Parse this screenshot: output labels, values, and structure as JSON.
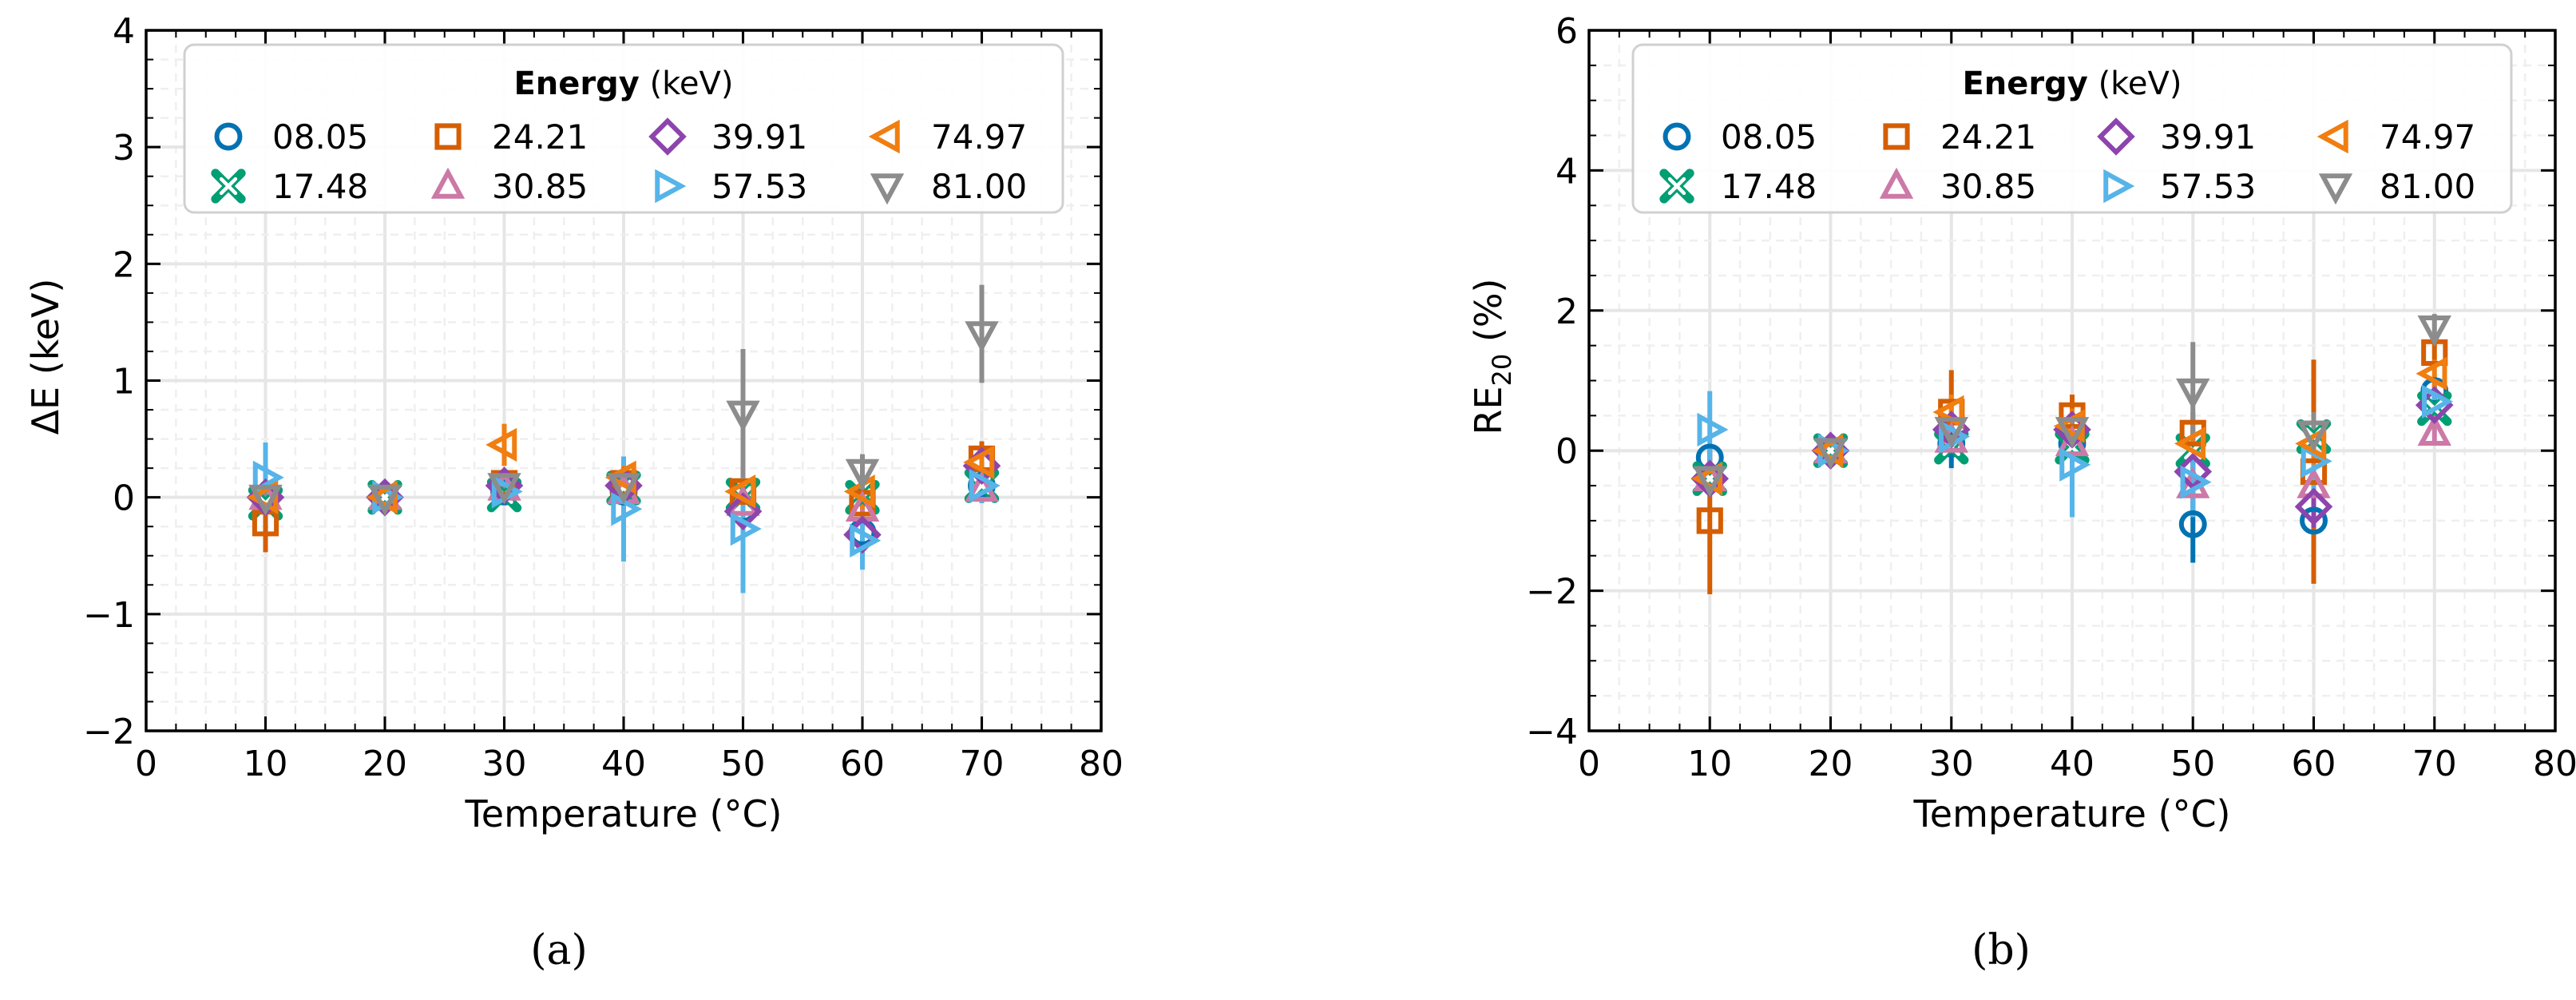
{
  "colors": {
    "e0805": "#0072B2",
    "e1748": "#009E73",
    "e2421": "#D55E00",
    "e3085": "#CC79A7",
    "e3991": "#8E44AD",
    "e5753": "#56B4E9",
    "e7497": "#F07E10",
    "e8100": "#8C8C8C"
  },
  "legend": {
    "title_bold": "Energy",
    "title_unit": "(keV)",
    "entries": [
      {
        "label": "08.05",
        "marker": "circle",
        "color": "#0072B2"
      },
      {
        "label": "24.21",
        "marker": "square",
        "color": "#D55E00"
      },
      {
        "label": "39.91",
        "marker": "diamond",
        "color": "#8E44AD"
      },
      {
        "label": "74.97",
        "marker": "tri-left",
        "color": "#F07E10"
      },
      {
        "label": "17.48",
        "marker": "thin-x",
        "color": "#009E73"
      },
      {
        "label": "30.85",
        "marker": "tri-up",
        "color": "#CC79A7"
      },
      {
        "label": "57.53",
        "marker": "tri-right",
        "color": "#56B4E9"
      },
      {
        "label": "81.00",
        "marker": "tri-down",
        "color": "#8C8C8C"
      }
    ]
  },
  "captions": {
    "a": "(a)",
    "b": "(b)"
  },
  "chart_data": [
    {
      "type": "scatter",
      "panel": "a",
      "xlabel": "Temperature (°C)",
      "ylabel": "ΔE (keV)",
      "xlim": [
        0,
        80
      ],
      "ylim": [
        -2,
        4
      ],
      "xticks": [
        0,
        10,
        20,
        30,
        40,
        50,
        60,
        70,
        80
      ],
      "yticks": [
        -2,
        -1,
        0,
        1,
        2,
        3,
        4
      ],
      "grid": true,
      "legend_position": "top",
      "series": [
        {
          "name": "08.05",
          "marker": "circle",
          "color": "#0072B2",
          "points": [
            {
              "x": 10,
              "y": 0.0,
              "err": 0.05
            },
            {
              "x": 20,
              "y": 0.0,
              "err": 0
            },
            {
              "x": 30,
              "y": 0.05,
              "err": 0.05
            },
            {
              "x": 40,
              "y": 0.05,
              "err": 0.08
            },
            {
              "x": 50,
              "y": -0.1,
              "err": 0.1
            },
            {
              "x": 60,
              "y": -0.3,
              "err": 0.1
            },
            {
              "x": 70,
              "y": 0.1,
              "err": 0.1
            }
          ]
        },
        {
          "name": "17.48",
          "marker": "thin-x",
          "color": "#009E73",
          "points": [
            {
              "x": 10,
              "y": -0.05,
              "err": 0.05
            },
            {
              "x": 20,
              "y": 0.0,
              "err": 0
            },
            {
              "x": 30,
              "y": 0.02,
              "err": 0.05
            },
            {
              "x": 40,
              "y": 0.08,
              "err": 0.1
            },
            {
              "x": 50,
              "y": 0.02,
              "err": 0.1
            },
            {
              "x": 60,
              "y": 0.0,
              "err": 0.1
            },
            {
              "x": 70,
              "y": 0.1,
              "err": 0.1
            }
          ]
        },
        {
          "name": "24.21",
          "marker": "square",
          "color": "#D55E00",
          "points": [
            {
              "x": 10,
              "y": -0.22,
              "err": 0.25
            },
            {
              "x": 20,
              "y": 0.0,
              "err": 0
            },
            {
              "x": 30,
              "y": 0.12,
              "err": 0.1
            },
            {
              "x": 40,
              "y": 0.12,
              "err": 0.1
            },
            {
              "x": 50,
              "y": 0.05,
              "err": 0.1
            },
            {
              "x": 60,
              "y": -0.05,
              "err": 0.15
            },
            {
              "x": 70,
              "y": 0.33,
              "err": 0.15
            }
          ]
        },
        {
          "name": "30.85",
          "marker": "tri-up",
          "color": "#CC79A7",
          "points": [
            {
              "x": 10,
              "y": 0.0,
              "err": 0.05
            },
            {
              "x": 20,
              "y": 0.0,
              "err": 0
            },
            {
              "x": 30,
              "y": 0.08,
              "err": 0.05
            },
            {
              "x": 40,
              "y": 0.05,
              "err": 0.08
            },
            {
              "x": 50,
              "y": -0.05,
              "err": 0.1
            },
            {
              "x": 60,
              "y": -0.1,
              "err": 0.1
            },
            {
              "x": 70,
              "y": 0.07,
              "err": 0.1
            }
          ]
        },
        {
          "name": "39.91",
          "marker": "diamond",
          "color": "#8E44AD",
          "points": [
            {
              "x": 10,
              "y": 0.0,
              "err": 0.05
            },
            {
              "x": 20,
              "y": 0.0,
              "err": 0
            },
            {
              "x": 30,
              "y": 0.1,
              "err": 0.08
            },
            {
              "x": 40,
              "y": 0.1,
              "err": 0.1
            },
            {
              "x": 50,
              "y": -0.12,
              "err": 0.15
            },
            {
              "x": 60,
              "y": -0.32,
              "err": 0.1
            },
            {
              "x": 70,
              "y": 0.27,
              "err": 0.15
            }
          ]
        },
        {
          "name": "57.53",
          "marker": "tri-right",
          "color": "#56B4E9",
          "points": [
            {
              "x": 10,
              "y": 0.17,
              "err": 0.3
            },
            {
              "x": 20,
              "y": 0.0,
              "err": 0
            },
            {
              "x": 30,
              "y": 0.05,
              "err": 0.1
            },
            {
              "x": 40,
              "y": -0.1,
              "err": 0.45
            },
            {
              "x": 50,
              "y": -0.27,
              "err": 0.55
            },
            {
              "x": 60,
              "y": -0.37,
              "err": 0.25
            },
            {
              "x": 70,
              "y": 0.1,
              "err": 0.15
            }
          ]
        },
        {
          "name": "74.97",
          "marker": "tri-left",
          "color": "#F07E10",
          "points": [
            {
              "x": 10,
              "y": 0.0,
              "err": 0.05
            },
            {
              "x": 20,
              "y": 0.0,
              "err": 0
            },
            {
              "x": 30,
              "y": 0.45,
              "err": 0.18
            },
            {
              "x": 40,
              "y": 0.17,
              "err": 0.1
            },
            {
              "x": 50,
              "y": 0.05,
              "err": 0.1
            },
            {
              "x": 60,
              "y": 0.05,
              "err": 0.15
            },
            {
              "x": 70,
              "y": 0.3,
              "err": 0.1
            }
          ]
        },
        {
          "name": "81.00",
          "marker": "tri-down",
          "color": "#8C8C8C",
          "points": [
            {
              "x": 10,
              "y": 0.0,
              "err": 0.05
            },
            {
              "x": 20,
              "y": 0.0,
              "err": 0
            },
            {
              "x": 30,
              "y": 0.1,
              "err": 0.1
            },
            {
              "x": 40,
              "y": 0.1,
              "err": 0.1
            },
            {
              "x": 50,
              "y": 0.72,
              "err": 0.55
            },
            {
              "x": 60,
              "y": 0.22,
              "err": 0.15
            },
            {
              "x": 70,
              "y": 1.4,
              "err": 0.42
            }
          ]
        }
      ]
    },
    {
      "type": "scatter",
      "panel": "b",
      "xlabel": "Temperature (°C)",
      "ylabel": "RE",
      "ylabel_sub": "20",
      "ylabel_unit": "(%)",
      "xlim": [
        0,
        80
      ],
      "ylim": [
        -4,
        6
      ],
      "xticks": [
        0,
        10,
        20,
        30,
        40,
        50,
        60,
        70,
        80
      ],
      "yticks": [
        -4,
        -2,
        0,
        2,
        4,
        6
      ],
      "grid": true,
      "legend_position": "top",
      "series": [
        {
          "name": "08.05",
          "marker": "circle",
          "color": "#0072B2",
          "points": [
            {
              "x": 10,
              "y": -0.1,
              "err": 0.1
            },
            {
              "x": 20,
              "y": 0.0,
              "err": 0
            },
            {
              "x": 30,
              "y": 0.1,
              "err": 0.35
            },
            {
              "x": 40,
              "y": 0.1,
              "err": 0.2
            },
            {
              "x": 50,
              "y": -1.05,
              "err": 0.55
            },
            {
              "x": 60,
              "y": -1.0,
              "err": 0.2
            },
            {
              "x": 70,
              "y": 0.85,
              "err": 0.15
            }
          ]
        },
        {
          "name": "17.48",
          "marker": "thin-x",
          "color": "#009E73",
          "points": [
            {
              "x": 10,
              "y": -0.4,
              "err": 0.1
            },
            {
              "x": 20,
              "y": 0.0,
              "err": 0
            },
            {
              "x": 30,
              "y": 0.05,
              "err": 0.15
            },
            {
              "x": 40,
              "y": 0.05,
              "err": 0.2
            },
            {
              "x": 50,
              "y": 0.0,
              "err": 0.2
            },
            {
              "x": 60,
              "y": 0.2,
              "err": 0.75
            },
            {
              "x": 70,
              "y": 0.6,
              "err": 0.15
            }
          ]
        },
        {
          "name": "24.21",
          "marker": "square",
          "color": "#D55E00",
          "points": [
            {
              "x": 10,
              "y": -1.0,
              "err": 1.05
            },
            {
              "x": 20,
              "y": 0.0,
              "err": 0
            },
            {
              "x": 30,
              "y": 0.55,
              "err": 0.6
            },
            {
              "x": 40,
              "y": 0.5,
              "err": 0.3
            },
            {
              "x": 50,
              "y": 0.25,
              "err": 0.3
            },
            {
              "x": 60,
              "y": -0.3,
              "err": 1.6
            },
            {
              "x": 70,
              "y": 1.4,
              "err": 0.2
            }
          ]
        },
        {
          "name": "30.85",
          "marker": "tri-up",
          "color": "#CC79A7",
          "points": [
            {
              "x": 10,
              "y": -0.4,
              "err": 0.1
            },
            {
              "x": 20,
              "y": 0.0,
              "err": 0
            },
            {
              "x": 30,
              "y": 0.15,
              "err": 0.15
            },
            {
              "x": 40,
              "y": 0.1,
              "err": 0.2
            },
            {
              "x": 50,
              "y": -0.5,
              "err": 0.3
            },
            {
              "x": 60,
              "y": -0.5,
              "err": 0.2
            },
            {
              "x": 70,
              "y": 0.25,
              "err": 0.15
            }
          ]
        },
        {
          "name": "39.91",
          "marker": "diamond",
          "color": "#8E44AD",
          "points": [
            {
              "x": 10,
              "y": -0.4,
              "err": 0.1
            },
            {
              "x": 20,
              "y": 0.0,
              "err": 0
            },
            {
              "x": 30,
              "y": 0.3,
              "err": 0.2
            },
            {
              "x": 40,
              "y": 0.3,
              "err": 0.2
            },
            {
              "x": 50,
              "y": -0.3,
              "err": 0.3
            },
            {
              "x": 60,
              "y": -0.8,
              "err": 0.3
            },
            {
              "x": 70,
              "y": 0.65,
              "err": 0.2
            }
          ]
        },
        {
          "name": "57.53",
          "marker": "tri-right",
          "color": "#56B4E9",
          "points": [
            {
              "x": 10,
              "y": 0.3,
              "err": 0.55
            },
            {
              "x": 20,
              "y": 0.0,
              "err": 0
            },
            {
              "x": 30,
              "y": 0.2,
              "err": 0.2
            },
            {
              "x": 40,
              "y": -0.2,
              "err": 0.75
            },
            {
              "x": 50,
              "y": -0.45,
              "err": 0.5
            },
            {
              "x": 60,
              "y": -0.15,
              "err": 0.4
            },
            {
              "x": 70,
              "y": 0.7,
              "err": 0.2
            }
          ]
        },
        {
          "name": "74.97",
          "marker": "tri-left",
          "color": "#F07E10",
          "points": [
            {
              "x": 10,
              "y": -0.4,
              "err": 0.1
            },
            {
              "x": 20,
              "y": 0.0,
              "err": 0
            },
            {
              "x": 30,
              "y": 0.55,
              "err": 0.25
            },
            {
              "x": 40,
              "y": 0.35,
              "err": 0.25
            },
            {
              "x": 50,
              "y": 0.1,
              "err": 0.2
            },
            {
              "x": 60,
              "y": 0.1,
              "err": 0.3
            },
            {
              "x": 70,
              "y": 1.1,
              "err": 0.2
            }
          ]
        },
        {
          "name": "81.00",
          "marker": "tri-down",
          "color": "#8C8C8C",
          "points": [
            {
              "x": 10,
              "y": -0.4,
              "err": 0.1
            },
            {
              "x": 20,
              "y": 0.0,
              "err": 0
            },
            {
              "x": 30,
              "y": 0.3,
              "err": 0.2
            },
            {
              "x": 40,
              "y": 0.3,
              "err": 0.2
            },
            {
              "x": 50,
              "y": 0.85,
              "err": 0.7
            },
            {
              "x": 60,
              "y": 0.25,
              "err": 0.3
            },
            {
              "x": 70,
              "y": 1.75,
              "err": 0.2
            }
          ]
        }
      ]
    }
  ]
}
